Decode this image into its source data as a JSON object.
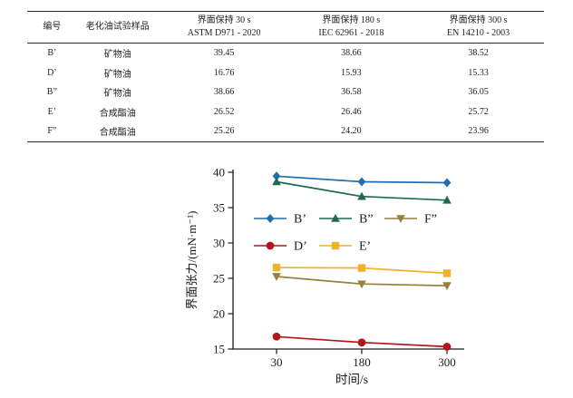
{
  "table": {
    "columns": [
      {
        "line1": "编号",
        "line2": ""
      },
      {
        "line1": "老化油试验样品",
        "line2": ""
      },
      {
        "line1": "界面保持 30 s",
        "line2": "ASTM D971 - 2020"
      },
      {
        "line1": "界面保持 180 s",
        "line2": "IEC 62961 - 2018"
      },
      {
        "line1": "界面保持 300 s",
        "line2": "EN 14210 - 2003"
      }
    ],
    "rows": [
      [
        "B’",
        "矿物油",
        "39.45",
        "38.66",
        "38.52"
      ],
      [
        "D’",
        "矿物油",
        "16.76",
        "15.93",
        "15.33"
      ],
      [
        "B”",
        "矿物油",
        "38.66",
        "36.58",
        "36.05"
      ],
      [
        "E’",
        "合成酯油",
        "26.52",
        "26.46",
        "25.72"
      ],
      [
        "F”",
        "合成酯油",
        "25.26",
        "24.20",
        "23.96"
      ]
    ]
  },
  "chart_data": {
    "type": "line",
    "x": [
      30,
      180,
      300
    ],
    "x_spacing": "equal",
    "xlabel": "时间/s",
    "ylabel": "界面张力/(mN·m⁻¹)",
    "ylim": [
      15,
      40
    ],
    "yticks": [
      15,
      20,
      25,
      30,
      35,
      40
    ],
    "grid": false,
    "legend_position": "upper-left-inside",
    "legend_rows": [
      [
        "B’",
        "B”",
        "F”"
      ],
      [
        "D’",
        "E’"
      ]
    ],
    "series": [
      {
        "name": "B’",
        "marker": "diamond",
        "color": "#1e6fad",
        "values": [
          39.45,
          38.66,
          38.52
        ]
      },
      {
        "name": "B”",
        "marker": "triangle-up",
        "color": "#1c6b50",
        "values": [
          38.66,
          36.58,
          36.05
        ]
      },
      {
        "name": "F”",
        "marker": "triangle-down",
        "color": "#97803a",
        "values": [
          25.26,
          24.2,
          23.96
        ]
      },
      {
        "name": "D’",
        "marker": "circle",
        "color": "#b2161c",
        "values": [
          16.76,
          15.93,
          15.33
        ]
      },
      {
        "name": "E’",
        "marker": "square",
        "color": "#f0b328",
        "values": [
          26.52,
          26.46,
          25.72
        ]
      }
    ],
    "axis_color": "#1a1a1a"
  }
}
